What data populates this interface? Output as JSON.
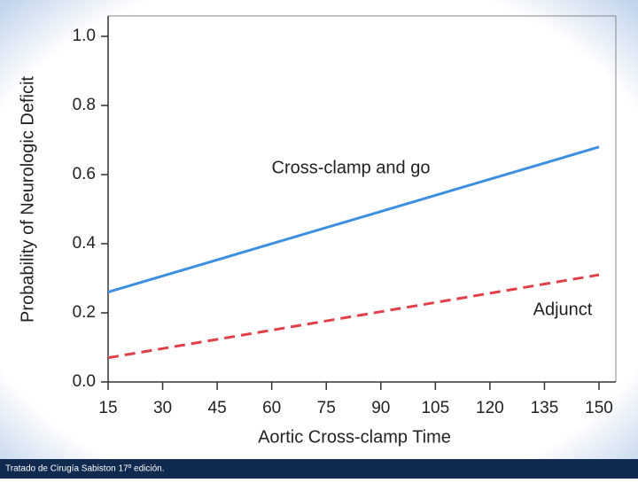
{
  "chart_data": {
    "type": "line",
    "x_label": "Aortic Cross-clamp Time",
    "y_label": "Probability of Neurologic Deficit",
    "x": [
      15,
      150
    ],
    "series": [
      {
        "name": "Cross-clamp and go",
        "color": "#3d8fe0",
        "dash": false,
        "values": [
          0.26,
          0.68
        ]
      },
      {
        "name": "Adjunct",
        "color": "#e0404a",
        "dash": true,
        "values": [
          0.07,
          0.31
        ]
      }
    ],
    "xlim": [
      15,
      150
    ],
    "xticks": [
      15,
      30,
      45,
      60,
      75,
      90,
      105,
      120,
      135,
      150
    ],
    "ylim": [
      0,
      1
    ],
    "yticks": [
      {
        "value": 0,
        "label": "0.0"
      },
      0.2,
      0.4,
      0.6,
      0.8,
      {
        "value": 1,
        "label": "1.0"
      }
    ],
    "footer": "Tratado de Cirugía Sabiston 17º edición."
  }
}
